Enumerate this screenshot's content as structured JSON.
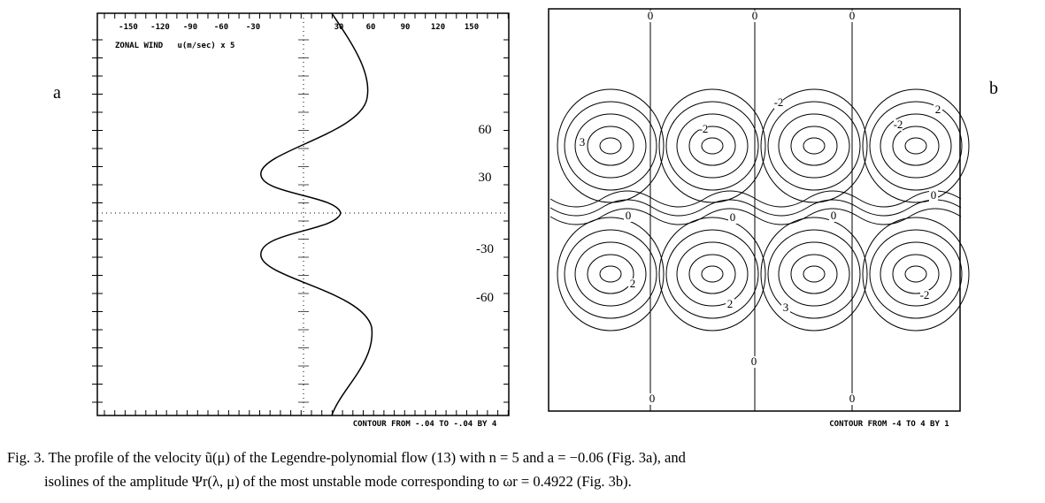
{
  "panel_a": {
    "label": "a",
    "top_tick_labels": [
      "-150",
      "-120",
      "-90",
      "-60",
      "-30",
      "30",
      "60",
      "90",
      "120",
      "150"
    ],
    "title": "ZONAL WIND   u(m/sec) x 5",
    "lat_labels": [
      "60",
      "30",
      "-30",
      "-60"
    ],
    "footer": "CONTOUR FROM -.04 TO -.04 BY 4"
  },
  "panel_b": {
    "label": "b",
    "contour_labels": [
      "0",
      "0",
      "0",
      "2",
      "2",
      "-2",
      "-2",
      "3",
      "0",
      "0",
      "0",
      "0",
      "-2",
      "2",
      "-2",
      "3",
      "0",
      "0",
      "0"
    ],
    "footer": "CONTOUR FROM -4 TO 4 BY 1"
  },
  "caption": {
    "line1": "Fig. 3. The profile of the velocity ũ(μ) of the Legendre-polynomial flow (13) with n = 5 and a = −0.06 (Fig. 3a), and",
    "line2": "isolines of the amplitude Ψr(λ, μ) of the most unstable mode corresponding to ωr = 0.4922 (Fig. 3b)."
  }
}
